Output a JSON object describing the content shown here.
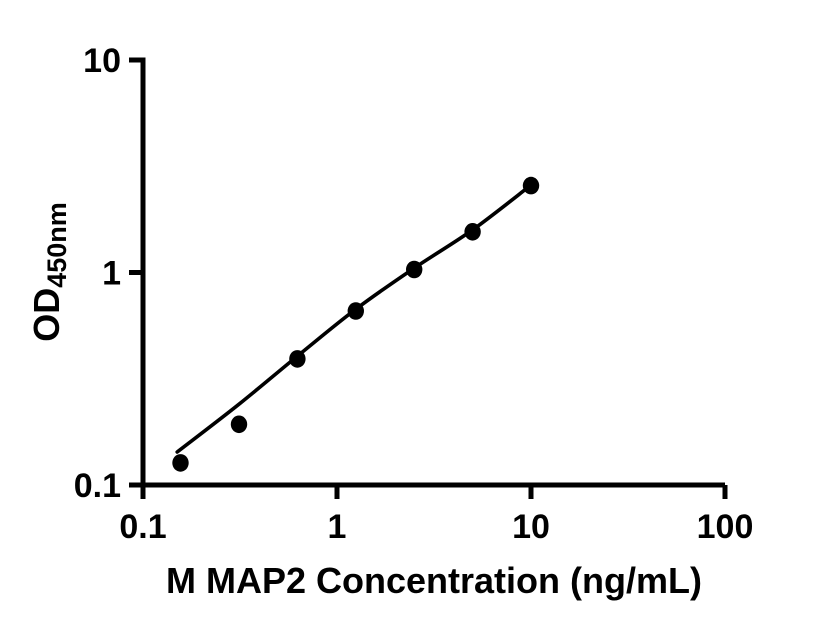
{
  "figure": {
    "background_color": "#ffffff",
    "ink_color": "#000000"
  },
  "chart_data": {
    "type": "scatter",
    "title": "",
    "xlabel": "M MAP2 Concentration (ng/mL)",
    "ylabel": "OD",
    "ylabel_subscript": "450nm",
    "x_scale": "log",
    "y_scale": "log",
    "xlim": [
      0.1,
      100
    ],
    "ylim": [
      0.1,
      10
    ],
    "grid": false,
    "legend": "none",
    "x_ticks": [
      {
        "value": 0.1,
        "label": "0.1"
      },
      {
        "value": 1,
        "label": "1"
      },
      {
        "value": 10,
        "label": "10"
      },
      {
        "value": 100,
        "label": "100"
      }
    ],
    "y_ticks": [
      {
        "value": 0.1,
        "label": "0.1"
      },
      {
        "value": 1,
        "label": "1"
      },
      {
        "value": 10,
        "label": "10"
      }
    ],
    "series": [
      {
        "name": "standard-points",
        "type": "scatter",
        "marker": "filled-circle",
        "color": "#000000",
        "points": [
          [
            0.156,
            0.127
          ],
          [
            0.3125,
            0.193
          ],
          [
            0.625,
            0.392
          ],
          [
            1.25,
            0.659
          ],
          [
            2.5,
            1.033
          ],
          [
            5,
            1.555
          ],
          [
            10,
            2.564
          ]
        ]
      },
      {
        "name": "fit-curve",
        "type": "line",
        "color": "#000000",
        "points": [
          [
            0.15,
            0.143
          ],
          [
            0.3125,
            0.24
          ],
          [
            0.625,
            0.404
          ],
          [
            1.25,
            0.672
          ],
          [
            2.5,
            1.049
          ],
          [
            5,
            1.587
          ],
          [
            10,
            2.579
          ]
        ]
      }
    ]
  }
}
